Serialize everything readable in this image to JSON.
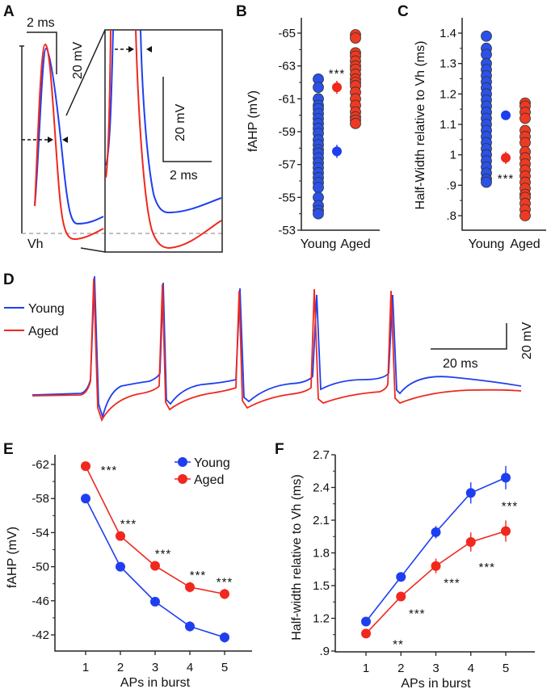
{
  "colors": {
    "young": "#1e3ff0",
    "aged": "#f0281e",
    "young_marker_fill": "#2a52e8",
    "aged_marker_fill": "#ee3a22"
  },
  "panel_a": {
    "label": "A",
    "scale_time": "2 ms",
    "scale_voltage": "20 mV",
    "inset_scale_voltage": "20 mV",
    "inset_scale_time": "2 ms",
    "baseline_label": "Vh"
  },
  "panel_d": {
    "label": "D",
    "legend": [
      {
        "name": "Young"
      },
      {
        "name": "Aged"
      }
    ],
    "scale_voltage": "20 mV",
    "scale_time": "20 ms"
  },
  "chart_data": [
    {
      "panel": "B",
      "type": "scatter",
      "ylabel": "fAHP (mV)",
      "xlabel": "",
      "categories": [
        "Young",
        "Aged"
      ],
      "ylim": [
        -53,
        -65
      ],
      "y_inverted": true,
      "yticks": [
        -65,
        -63,
        -61,
        -59,
        -57,
        -55,
        -53
      ],
      "ytick_labels": [
        "-65",
        "-63",
        "-61",
        "-59",
        "-57",
        "-55",
        "-53"
      ],
      "series": [
        {
          "name": "Young",
          "points": [
            -62.2,
            -61.7,
            -61,
            -60.6,
            -60.4,
            -60.1,
            -59.8,
            -59.5,
            -59.2,
            -58.9,
            -58.5,
            -58.2,
            -57.9,
            -57.7,
            -57.4,
            -57.1,
            -56.8,
            -56.5,
            -56.2,
            -55.9,
            -55.6,
            -55,
            -54.5,
            -54.2,
            -54
          ],
          "mean": -57.8,
          "sem": 0.3
        },
        {
          "name": "Aged",
          "points": [
            -64.9,
            -64.7,
            -63.8,
            -63.6,
            -63.3,
            -63,
            -62.8,
            -62.5,
            -62.2,
            -62,
            -61.8,
            -61.4,
            -61,
            -60.6,
            -60.2,
            -59.9,
            -59.7,
            -59.5
          ],
          "mean": -61.7,
          "sem": 0.3
        }
      ],
      "significance": "***"
    },
    {
      "panel": "C",
      "type": "scatter",
      "ylabel": "Half-Width relative to Vh (ms)",
      "xlabel": "",
      "categories": [
        "Young",
        "Aged"
      ],
      "ylim": [
        0.8,
        1.4
      ],
      "yticks": [
        1.4,
        1.3,
        1.2,
        1.1,
        1.0,
        0.9,
        0.8
      ],
      "ytick_labels": [
        "1.4",
        "1.3",
        "1.2",
        "1.1",
        "1",
        ".9",
        ".8"
      ],
      "series": [
        {
          "name": "Young",
          "points": [
            1.39,
            1.35,
            1.33,
            1.3,
            1.28,
            1.26,
            1.24,
            1.22,
            1.2,
            1.18,
            1.16,
            1.14,
            1.12,
            1.1,
            1.08,
            1.06,
            1.04,
            1.02,
            1.0,
            0.98,
            0.96,
            0.94,
            0.92,
            0.91
          ],
          "mean": 1.13,
          "sem": 0.01
        },
        {
          "name": "Aged",
          "points": [
            1.17,
            1.16,
            1.14,
            1.12,
            1.08,
            1.06,
            1.04,
            1.01,
            0.99,
            0.97,
            0.95,
            0.93,
            0.91,
            0.89,
            0.87,
            0.86,
            0.84,
            0.82,
            0.8
          ],
          "mean": 0.99,
          "sem": 0.015
        }
      ],
      "significance": "***"
    },
    {
      "panel": "E",
      "type": "line",
      "ylabel": "fAHP (mV)",
      "xlabel": "APs in burst",
      "x": [
        1,
        2,
        3,
        4,
        5
      ],
      "ylim": [
        -40.8,
        -63
      ],
      "y_inverted": true,
      "yticks": [
        -62,
        -58,
        -54,
        -50,
        -46,
        -42
      ],
      "ytick_labels": [
        "-62",
        "-58",
        "-54",
        "-50",
        "-46",
        "-42"
      ],
      "series": [
        {
          "name": "Young",
          "values": [
            -58.0,
            -50.0,
            -45.9,
            -43.0,
            -41.7
          ],
          "sem": [
            0.2,
            0.2,
            0.4,
            0.5,
            0.5
          ]
        },
        {
          "name": "Aged",
          "values": [
            -61.8,
            -53.6,
            -50.1,
            -47.6,
            -46.8
          ],
          "sem": [
            0.2,
            0.3,
            0.4,
            0.5,
            0.5
          ]
        }
      ],
      "significance": [
        "***",
        "***",
        "***",
        "***",
        "***"
      ],
      "legend_position": "top-right"
    },
    {
      "panel": "F",
      "type": "line",
      "ylabel": "Half-width relative to Vh (ms)",
      "xlabel": "APs in burst",
      "x": [
        1,
        2,
        3,
        4,
        5
      ],
      "ylim": [
        0.9,
        2.7
      ],
      "yticks": [
        2.7,
        2.4,
        2.1,
        1.8,
        1.5,
        1.2,
        0.9
      ],
      "ytick_labels": [
        "2.7",
        "2.4",
        "2.1",
        "1.8",
        "1.5",
        "1.2",
        ".9"
      ],
      "series": [
        {
          "name": "Young",
          "values": [
            1.17,
            1.58,
            1.99,
            2.35,
            2.49
          ],
          "sem": [
            0.02,
            0.03,
            0.05,
            0.09,
            0.1
          ]
        },
        {
          "name": "Aged",
          "values": [
            1.06,
            1.4,
            1.68,
            1.9,
            2.0
          ],
          "sem": [
            0.02,
            0.03,
            0.06,
            0.08,
            0.09
          ]
        }
      ],
      "significance": [
        "**",
        "***",
        "***",
        "***",
        "***"
      ]
    }
  ]
}
